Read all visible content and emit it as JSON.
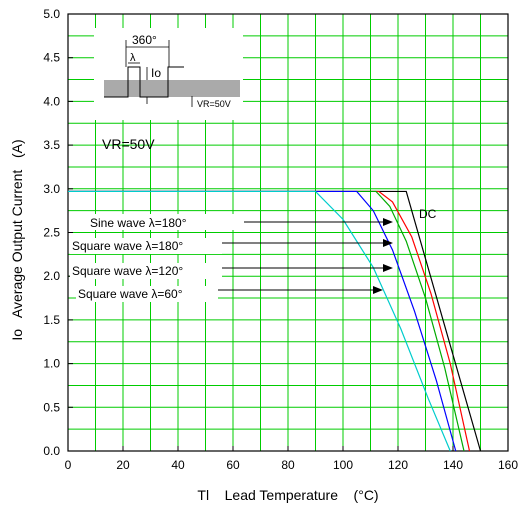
{
  "chart_data": {
    "type": "line",
    "xlabel": "Tl    Lead Temperature    (°C)",
    "ylabel": "Io   Average Output Current   (A)",
    "xlim": [
      0,
      160
    ],
    "ylim": [
      0,
      5.0
    ],
    "x_ticks": [
      "0",
      "20",
      "40",
      "60",
      "80",
      "100",
      "120",
      "140",
      "160"
    ],
    "y_ticks": [
      "0.0",
      "0.5",
      "1.0",
      "1.5",
      "2.0",
      "2.5",
      "3.0",
      "3.5",
      "4.0",
      "4.5",
      "5.0"
    ],
    "grid": true,
    "grid_color": "#00cc00",
    "series": [
      {
        "name": "DC",
        "color": "#000000",
        "x": [
          0,
          123,
          150
        ],
        "y": [
          2.97,
          2.97,
          0
        ]
      },
      {
        "name": "Sine wave λ=180°",
        "color": "#ff0000",
        "x": [
          0,
          113,
          118,
          125,
          132,
          139,
          146
        ],
        "y": [
          2.97,
          2.97,
          2.85,
          2.45,
          1.8,
          1.0,
          0
        ]
      },
      {
        "name": "Square wave λ=180°",
        "color": "#00aa00",
        "x": [
          0,
          112,
          117,
          123,
          130,
          137,
          144
        ],
        "y": [
          2.97,
          2.97,
          2.8,
          2.4,
          1.75,
          0.95,
          0
        ]
      },
      {
        "name": "Square wave λ=120°",
        "color": "#0000ff",
        "x": [
          0,
          105,
          111,
          118,
          126,
          134,
          141
        ],
        "y": [
          2.97,
          2.97,
          2.75,
          2.3,
          1.6,
          0.8,
          0
        ]
      },
      {
        "name": "Square wave λ=60°",
        "color": "#00cccc",
        "x": [
          0,
          90,
          100,
          111,
          121,
          131,
          139
        ],
        "y": [
          2.97,
          2.97,
          2.65,
          2.1,
          1.4,
          0.6,
          0
        ]
      }
    ],
    "line_label": "DC",
    "legend_labels": [
      "Sine wave λ=180°",
      "Square wave λ=180°",
      "Square wave λ=120°",
      "Square wave λ=60°"
    ],
    "inset": {
      "angle_label": "360°",
      "lambda_label": "λ",
      "io_label": "Io",
      "vr_small_label": "VR=50V"
    },
    "condition_label": "VR=50V"
  }
}
